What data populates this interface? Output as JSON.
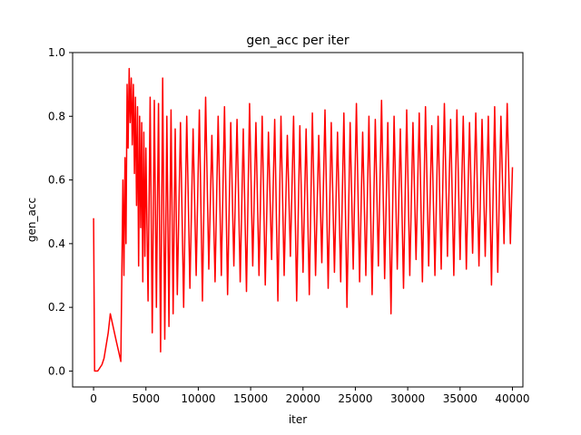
{
  "chart_data": {
    "type": "line",
    "title": "gen_acc per iter",
    "xlabel": "iter",
    "ylabel": "gen_acc",
    "xlim": [
      -2000,
      41000
    ],
    "ylim": [
      -0.05,
      1.0
    ],
    "x_ticks": [
      0,
      5000,
      10000,
      15000,
      20000,
      25000,
      30000,
      35000,
      40000
    ],
    "x_tick_labels": [
      "0",
      "5000",
      "10000",
      "15000",
      "20000",
      "25000",
      "30000",
      "35000",
      "40000"
    ],
    "y_ticks": [
      0.0,
      0.2,
      0.4,
      0.6,
      0.8,
      1.0
    ],
    "y_tick_labels": [
      "0.0",
      "0.2",
      "0.4",
      "0.6",
      "0.8",
      "1.0"
    ],
    "grid": false,
    "legend": "none",
    "series": [
      {
        "color": "#ff0000",
        "x": [
          0,
          100,
          200,
          400,
          600,
          800,
          1000,
          1200,
          1400,
          1600,
          1800,
          2000,
          2200,
          2400,
          2600,
          2800,
          2900,
          3000,
          3100,
          3200,
          3300,
          3400,
          3500,
          3600,
          3700,
          3800,
          3900,
          4000,
          4100,
          4200,
          4300,
          4400,
          4500,
          4600,
          4700,
          4800,
          4900,
          5000,
          5200,
          5400,
          5600,
          5800,
          6000,
          6200,
          6400,
          6600,
          6800,
          7000,
          7200,
          7400,
          7600,
          7800,
          8000,
          8300,
          8600,
          8900,
          9200,
          9500,
          9800,
          10100,
          10400,
          10700,
          11000,
          11300,
          11600,
          11900,
          12200,
          12500,
          12800,
          13100,
          13400,
          13700,
          14000,
          14300,
          14600,
          14900,
          15200,
          15500,
          15800,
          16100,
          16400,
          16700,
          17000,
          17300,
          17600,
          17900,
          18200,
          18500,
          18800,
          19100,
          19400,
          19700,
          20000,
          20300,
          20600,
          20900,
          21200,
          21500,
          21800,
          22100,
          22400,
          22700,
          23000,
          23300,
          23600,
          23900,
          24200,
          24500,
          24800,
          25100,
          25400,
          25700,
          26000,
          26300,
          26600,
          26900,
          27200,
          27500,
          27800,
          28100,
          28400,
          28700,
          29000,
          29300,
          29600,
          29900,
          30200,
          30500,
          30800,
          31100,
          31400,
          31700,
          32000,
          32300,
          32600,
          32900,
          33200,
          33500,
          33800,
          34100,
          34400,
          34700,
          35000,
          35300,
          35600,
          35900,
          36200,
          36500,
          36800,
          37100,
          37400,
          37700,
          38000,
          38300,
          38600,
          38900,
          39200,
          39500,
          39800,
          40000
        ],
        "y": [
          0.48,
          0.0,
          0.0,
          0.0,
          0.01,
          0.02,
          0.04,
          0.08,
          0.12,
          0.18,
          0.15,
          0.12,
          0.09,
          0.06,
          0.03,
          0.6,
          0.3,
          0.67,
          0.4,
          0.9,
          0.7,
          0.95,
          0.78,
          0.92,
          0.71,
          0.9,
          0.62,
          0.86,
          0.52,
          0.83,
          0.33,
          0.8,
          0.45,
          0.78,
          0.28,
          0.75,
          0.36,
          0.7,
          0.22,
          0.86,
          0.12,
          0.85,
          0.2,
          0.84,
          0.06,
          0.92,
          0.1,
          0.8,
          0.14,
          0.82,
          0.18,
          0.76,
          0.24,
          0.78,
          0.2,
          0.8,
          0.26,
          0.76,
          0.3,
          0.82,
          0.22,
          0.86,
          0.32,
          0.74,
          0.28,
          0.8,
          0.3,
          0.83,
          0.24,
          0.78,
          0.33,
          0.79,
          0.28,
          0.76,
          0.25,
          0.84,
          0.33,
          0.78,
          0.3,
          0.8,
          0.27,
          0.75,
          0.35,
          0.79,
          0.22,
          0.8,
          0.3,
          0.74,
          0.36,
          0.8,
          0.22,
          0.77,
          0.31,
          0.76,
          0.24,
          0.81,
          0.3,
          0.74,
          0.34,
          0.82,
          0.26,
          0.78,
          0.31,
          0.75,
          0.28,
          0.81,
          0.2,
          0.78,
          0.32,
          0.84,
          0.28,
          0.75,
          0.3,
          0.8,
          0.24,
          0.79,
          0.33,
          0.85,
          0.29,
          0.78,
          0.18,
          0.8,
          0.32,
          0.76,
          0.26,
          0.82,
          0.3,
          0.78,
          0.35,
          0.81,
          0.28,
          0.83,
          0.33,
          0.77,
          0.3,
          0.8,
          0.32,
          0.84,
          0.36,
          0.79,
          0.3,
          0.82,
          0.35,
          0.8,
          0.32,
          0.78,
          0.37,
          0.81,
          0.33,
          0.79,
          0.36,
          0.8,
          0.27,
          0.83,
          0.31,
          0.8,
          0.4,
          0.84,
          0.4,
          0.64
        ]
      }
    ]
  }
}
